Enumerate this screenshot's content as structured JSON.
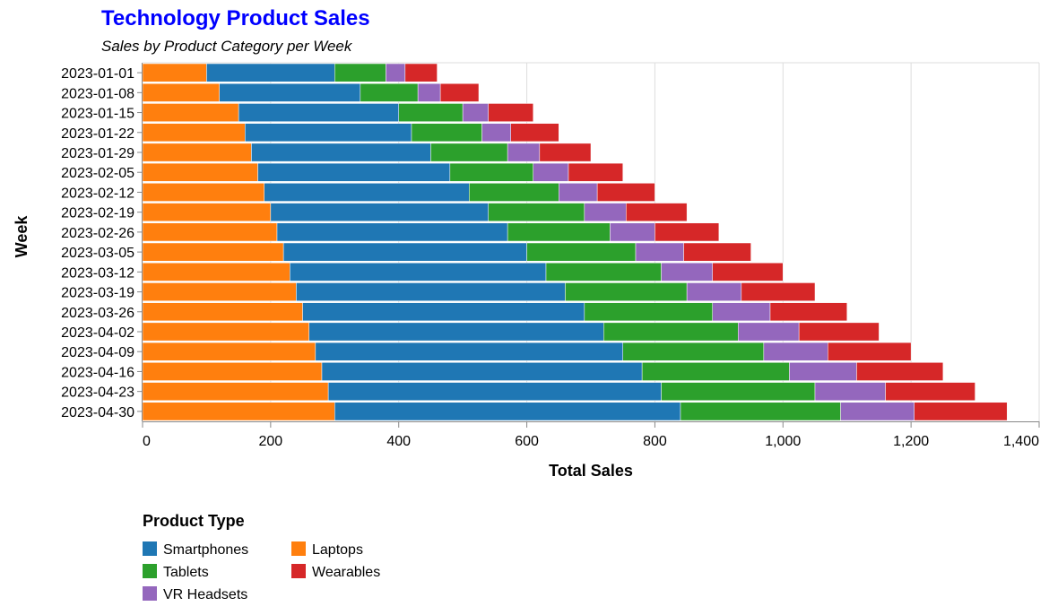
{
  "chart_data": {
    "type": "bar",
    "orientation": "horizontal",
    "stacked": true,
    "title": "Technology Product Sales",
    "subtitle": "Sales by Product Category per Week",
    "title_color": "#0000ff",
    "xlabel": "Total Sales",
    "ylabel": "Week",
    "xlim": [
      0,
      1400
    ],
    "x_ticks": [
      0,
      200,
      400,
      600,
      800,
      1000,
      1200,
      1400
    ],
    "x_tick_labels": [
      "0",
      "200",
      "400",
      "600",
      "800",
      "1,000",
      "1,200",
      "1,400"
    ],
    "grid": true,
    "categories": [
      "2023-01-01",
      "2023-01-08",
      "2023-01-15",
      "2023-01-22",
      "2023-01-29",
      "2023-02-05",
      "2023-02-12",
      "2023-02-19",
      "2023-02-26",
      "2023-03-05",
      "2023-03-12",
      "2023-03-19",
      "2023-03-26",
      "2023-04-02",
      "2023-04-09",
      "2023-04-16",
      "2023-04-23",
      "2023-04-30"
    ],
    "stack_order": [
      "Laptops",
      "Smartphones",
      "Tablets",
      "VR Headsets",
      "Wearables"
    ],
    "series": [
      {
        "name": "Laptops",
        "color": "#ff7f0e",
        "values": [
          100,
          120,
          150,
          160,
          170,
          180,
          190,
          200,
          210,
          220,
          230,
          240,
          250,
          260,
          270,
          280,
          290,
          300
        ]
      },
      {
        "name": "Smartphones",
        "color": "#1f77b4",
        "values": [
          200,
          220,
          250,
          260,
          280,
          300,
          320,
          340,
          360,
          380,
          400,
          420,
          440,
          460,
          480,
          500,
          520,
          540
        ]
      },
      {
        "name": "Tablets",
        "color": "#2ca02c",
        "values": [
          80,
          90,
          100,
          110,
          120,
          130,
          140,
          150,
          160,
          170,
          180,
          190,
          200,
          210,
          220,
          230,
          240,
          250
        ]
      },
      {
        "name": "VR Headsets",
        "color": "#9467bd",
        "values": [
          30,
          35,
          40,
          45,
          50,
          55,
          60,
          65,
          70,
          75,
          80,
          85,
          90,
          95,
          100,
          105,
          110,
          115
        ]
      },
      {
        "name": "Wearables",
        "color": "#d62728",
        "values": [
          50,
          60,
          70,
          75,
          80,
          85,
          90,
          95,
          100,
          105,
          110,
          115,
          120,
          125,
          130,
          135,
          140,
          145
        ]
      }
    ],
    "legend": {
      "title": "Product Type",
      "position": "bottom-left",
      "entries": [
        "Smartphones",
        "Laptops",
        "Tablets",
        "Wearables",
        "VR Headsets"
      ]
    }
  }
}
